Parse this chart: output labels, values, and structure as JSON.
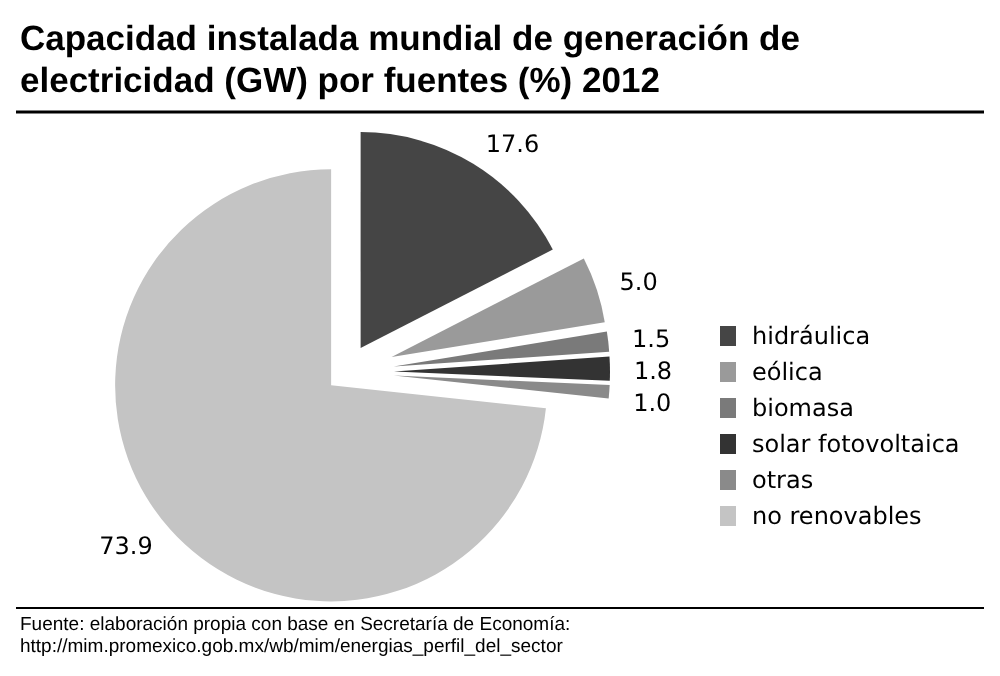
{
  "chart_data": {
    "type": "pie",
    "title": "Capacidad instalada mundial de generación de electricidad (GW) por fuentes (%) 2012",
    "categories": [
      "hidráulica",
      "eólica",
      "biomasa",
      "solar fotovoltaica",
      "otras",
      "no renovables"
    ],
    "values": [
      17.6,
      5.0,
      1.5,
      1.8,
      1.0,
      73.9
    ],
    "value_labels": [
      "17.6",
      "5.0",
      "1.5",
      "1.8",
      "1.0",
      "73.9"
    ],
    "colors": [
      "#454545",
      "#9a9a9a",
      "#7a7a7a",
      "#333333",
      "#8a8a8a",
      "#c4c4c4"
    ],
    "legend": "right",
    "annotations": [
      "Fuente: elaboración propia con base en Secretaría de Economía:",
      "http://mim.promexico.gob.mx/wb/mim/energias_perfil_del_sector"
    ]
  }
}
